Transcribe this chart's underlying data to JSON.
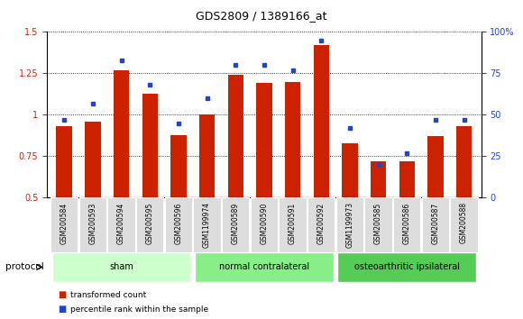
{
  "title": "GDS2809 / 1389166_at",
  "categories": [
    "GSM200584",
    "GSM200593",
    "GSM200594",
    "GSM200595",
    "GSM200596",
    "GSM1199974",
    "GSM200589",
    "GSM200590",
    "GSM200591",
    "GSM200592",
    "GSM1199973",
    "GSM200585",
    "GSM200586",
    "GSM200587",
    "GSM200588"
  ],
  "red_values": [
    0.93,
    0.96,
    1.27,
    1.13,
    0.88,
    1.0,
    1.24,
    1.19,
    1.2,
    1.42,
    0.83,
    0.72,
    0.72,
    0.87,
    0.93
  ],
  "blue_values": [
    47,
    57,
    83,
    68,
    45,
    60,
    80,
    80,
    77,
    95,
    42,
    20,
    27,
    47,
    47
  ],
  "ylim_left": [
    0.5,
    1.5
  ],
  "ylim_right": [
    0,
    100
  ],
  "yticks_left": [
    0.5,
    0.75,
    1.0,
    1.25,
    1.5
  ],
  "yticks_right": [
    0,
    25,
    50,
    75,
    100
  ],
  "ytick_labels_right": [
    "0",
    "25",
    "50",
    "75",
    "100%"
  ],
  "groups": [
    {
      "label": "sham",
      "start": 0,
      "end": 4,
      "color": "#ccffcc"
    },
    {
      "label": "normal contralateral",
      "start": 5,
      "end": 9,
      "color": "#88ee88"
    },
    {
      "label": "osteoarthritic ipsilateral",
      "start": 10,
      "end": 14,
      "color": "#55cc55"
    }
  ],
  "bar_color": "#cc2200",
  "dot_color": "#2244cc",
  "bar_width": 0.55,
  "bg_color": "#ffffff",
  "xlabel_bg": "#dddddd",
  "legend_red_label": "transformed count",
  "legend_blue_label": "percentile rank within the sample",
  "protocol_label": "protocol"
}
